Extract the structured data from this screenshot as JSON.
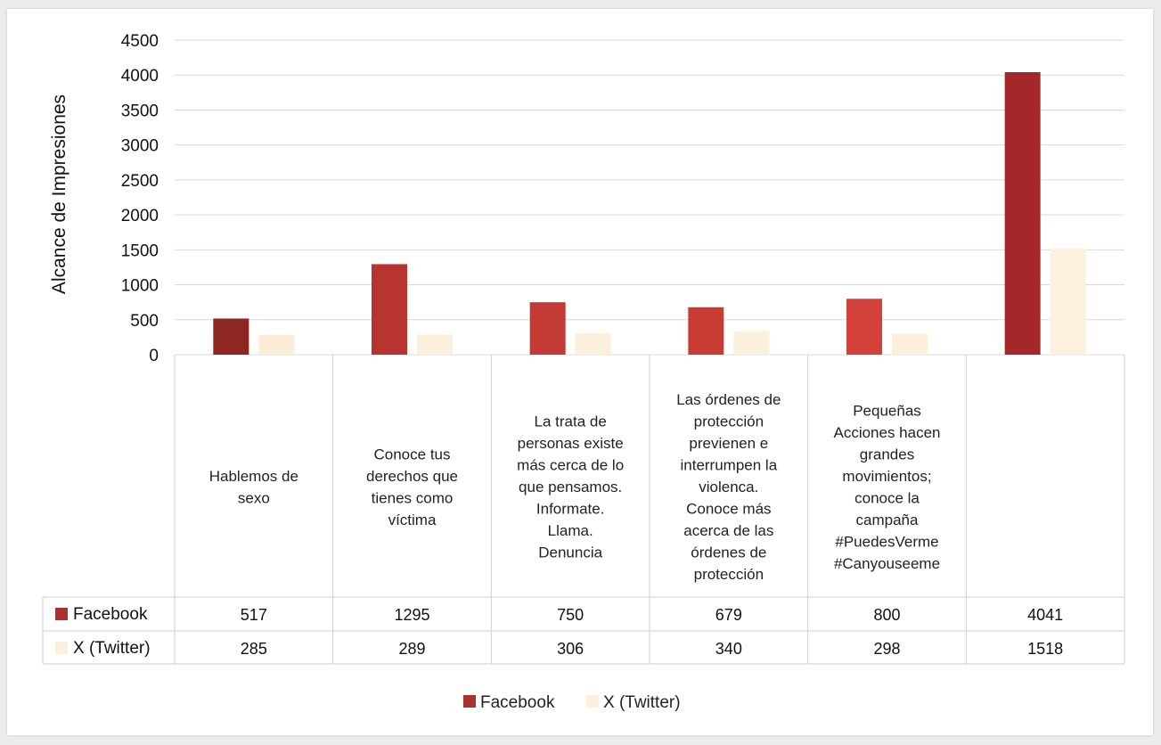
{
  "chart_data": {
    "type": "bar",
    "title": "",
    "xlabel": "",
    "ylabel": "Alcance de Impresiones",
    "ylim": [
      0,
      4500
    ],
    "yticks": [
      0,
      500,
      1000,
      1500,
      2000,
      2500,
      3000,
      3500,
      4000,
      4500
    ],
    "grid": true,
    "legend_position": "bottom",
    "data_table": true,
    "categories": [
      "Hablemos de sexo",
      "Conoce tus derechos que tienes como víctima",
      "La trata de personas existe más cerca de lo que pensamos. Informate. Llama. Denuncia",
      "Las órdenes de protección previenen e interrumpen la violenca. Conoce más acerca de las órdenes de protección",
      "Pequeñas Acciones hacen grandes movimientos; conoce la campaña #PuedesVerme #Canyouseeme",
      ""
    ],
    "category_lines": [
      [
        "Hablemos de",
        "sexo"
      ],
      [
        "Conoce tus",
        "derechos que",
        "tienes como",
        "víctima"
      ],
      [
        "La trata de",
        "personas existe",
        "más cerca de lo",
        "que pensamos.",
        "Informate.",
        "Llama.",
        "Denuncia"
      ],
      [
        "Las órdenes de",
        "protección",
        "previenen e",
        "interrumpen la",
        "violenca.",
        "Conoce más",
        "acerca de las",
        "órdenes de",
        "protección"
      ],
      [
        "Pequeñas",
        "Acciones hacen",
        "grandes",
        "movimientos;",
        "conoce la",
        "campaña",
        "#PuedesVerme",
        "#Canyouseeme"
      ],
      []
    ],
    "series": [
      {
        "name": "Facebook",
        "color": "#a8322e",
        "shades": [
          "#8e2622",
          "#b83430",
          "#c23a33",
          "#c83c34",
          "#d2413a",
          "#a4282a"
        ],
        "values": [
          517,
          1295,
          750,
          679,
          800,
          4041
        ],
        "labels": [
          "517",
          "1295",
          "750",
          "679",
          "800",
          "4041"
        ]
      },
      {
        "name": "X (Twitter)",
        "color": "#fbf0db",
        "shades": [
          "#faecd6",
          "#fbf0dc",
          "#fbf0dc",
          "#fbf0dc",
          "#fbefd9",
          "#fbf1de"
        ],
        "values": [
          285,
          289,
          306,
          340,
          298,
          1518
        ],
        "labels": [
          "285",
          "289",
          "306",
          "340",
          "298",
          "1518"
        ]
      }
    ]
  }
}
